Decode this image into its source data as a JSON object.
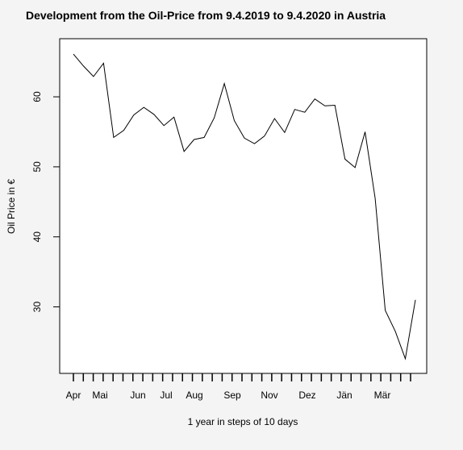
{
  "chart_data": {
    "type": "line",
    "title": "Development from the Oil-Price from 9.4.2019 to 9.4.2020 in Austria",
    "xlabel": "1 year in steps of 10 days",
    "ylabel": "Oil Price in €",
    "x_tick_labels": [
      "Apr",
      "Mai",
      "Jun",
      "Jul",
      "Aug",
      "Sep",
      "Nov",
      "Dez",
      "Jän",
      "Mär"
    ],
    "y_ticks": [
      30,
      40,
      50,
      60
    ],
    "ylim": [
      20.5,
      68.3
    ],
    "grid": false,
    "series": [
      {
        "values": [
          66.1,
          64.4,
          62.9,
          64.8,
          54.2,
          55.2,
          57.4,
          58.5,
          57.5,
          55.9,
          57.1,
          52.2,
          53.9,
          54.2,
          57.0,
          61.9,
          56.6,
          54.1,
          53.3,
          54.4,
          56.9,
          54.9,
          58.2,
          57.8,
          59.7,
          58.7,
          58.8,
          51.1,
          49.9,
          55.0,
          45.5,
          29.5,
          26.5,
          22.6,
          31.0
        ]
      }
    ]
  }
}
